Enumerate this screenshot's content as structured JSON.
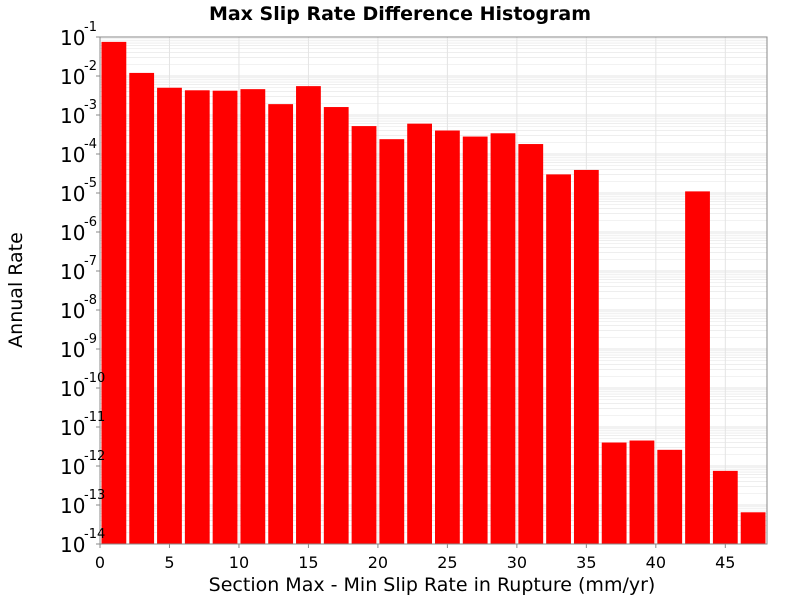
{
  "chart_data": {
    "type": "bar",
    "title": "Max Slip Rate Difference Histogram",
    "xlabel": "Section Max - Min Slip Rate in Rupture (mm/yr)",
    "ylabel": "Annual Rate",
    "y_scale": "log",
    "ylim": [
      1e-14,
      0.1
    ],
    "xlim": [
      0,
      48
    ],
    "bin_width": 2,
    "x_ticks": [
      0,
      5,
      10,
      15,
      20,
      25,
      30,
      35,
      40,
      45
    ],
    "y_ticks": [
      {
        "base": "10",
        "exp": "-1",
        "value": 0.1
      },
      {
        "base": "10",
        "exp": "-2",
        "value": 0.01
      },
      {
        "base": "10",
        "exp": "-3",
        "value": 0.001
      },
      {
        "base": "10",
        "exp": "-4",
        "value": 0.0001
      },
      {
        "base": "10",
        "exp": "-5",
        "value": 1e-05
      },
      {
        "base": "10",
        "exp": "-6",
        "value": 1e-06
      },
      {
        "base": "10",
        "exp": "-7",
        "value": 1e-07
      },
      {
        "base": "10",
        "exp": "-8",
        "value": 1e-08
      },
      {
        "base": "10",
        "exp": "-9",
        "value": 1e-09
      },
      {
        "base": "10",
        "exp": "-10",
        "value": 1e-10
      },
      {
        "base": "10",
        "exp": "-11",
        "value": 1e-11
      },
      {
        "base": "10",
        "exp": "-12",
        "value": 1e-12
      },
      {
        "base": "10",
        "exp": "-13",
        "value": 1e-13
      },
      {
        "base": "10",
        "exp": "-14",
        "value": 1e-14
      }
    ],
    "x": [
      1,
      3,
      5,
      7,
      9,
      11,
      13,
      15,
      17,
      19,
      21,
      23,
      25,
      27,
      29,
      31,
      33,
      35,
      37,
      39,
      41,
      43,
      45,
      47
    ],
    "values": [
      0.075,
      0.012,
      0.005,
      0.0043,
      0.0042,
      0.0046,
      0.0019,
      0.0055,
      0.0016,
      0.00052,
      0.00024,
      0.0006,
      0.0004,
      0.00028,
      0.00034,
      0.00018,
      3e-05,
      3.9e-05,
      4e-12,
      4.5e-12,
      2.6e-12,
      1.1e-05,
      7.5e-13,
      6.5e-14
    ],
    "bar_color": "#ff0000",
    "grid": true,
    "background": "#ffffff",
    "grid_color": "#e4e4e4",
    "axis_color": "#888888"
  }
}
